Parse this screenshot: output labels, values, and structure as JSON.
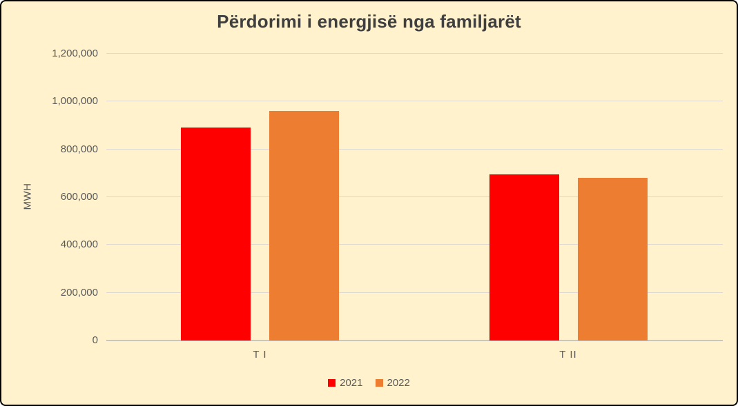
{
  "frame": {
    "background_color": "#FFF2CC",
    "border_color": "#000000"
  },
  "chart_data": {
    "type": "bar",
    "title": "Përdorimi i energjisë nga familjarët",
    "xlabel": "",
    "ylabel": "MWH",
    "categories": [
      "T I",
      "T II"
    ],
    "series": [
      {
        "name": "2021",
        "color": "#FF0000",
        "values": [
          890000,
          696000
        ]
      },
      {
        "name": "2022",
        "color": "#ED7D31",
        "values": [
          960000,
          682000
        ]
      }
    ],
    "ylim": [
      0,
      1200000
    ],
    "ytick_step": 200000,
    "ytick_labels": [
      "0",
      "200,000",
      "400,000",
      "600,000",
      "800,000",
      "1,000,000",
      "1,200,000"
    ],
    "grid": true,
    "legend_position": "bottom",
    "text_color": "#595959",
    "title_color": "#3F3F3F",
    "gridline_color": "#DCD9D0"
  }
}
